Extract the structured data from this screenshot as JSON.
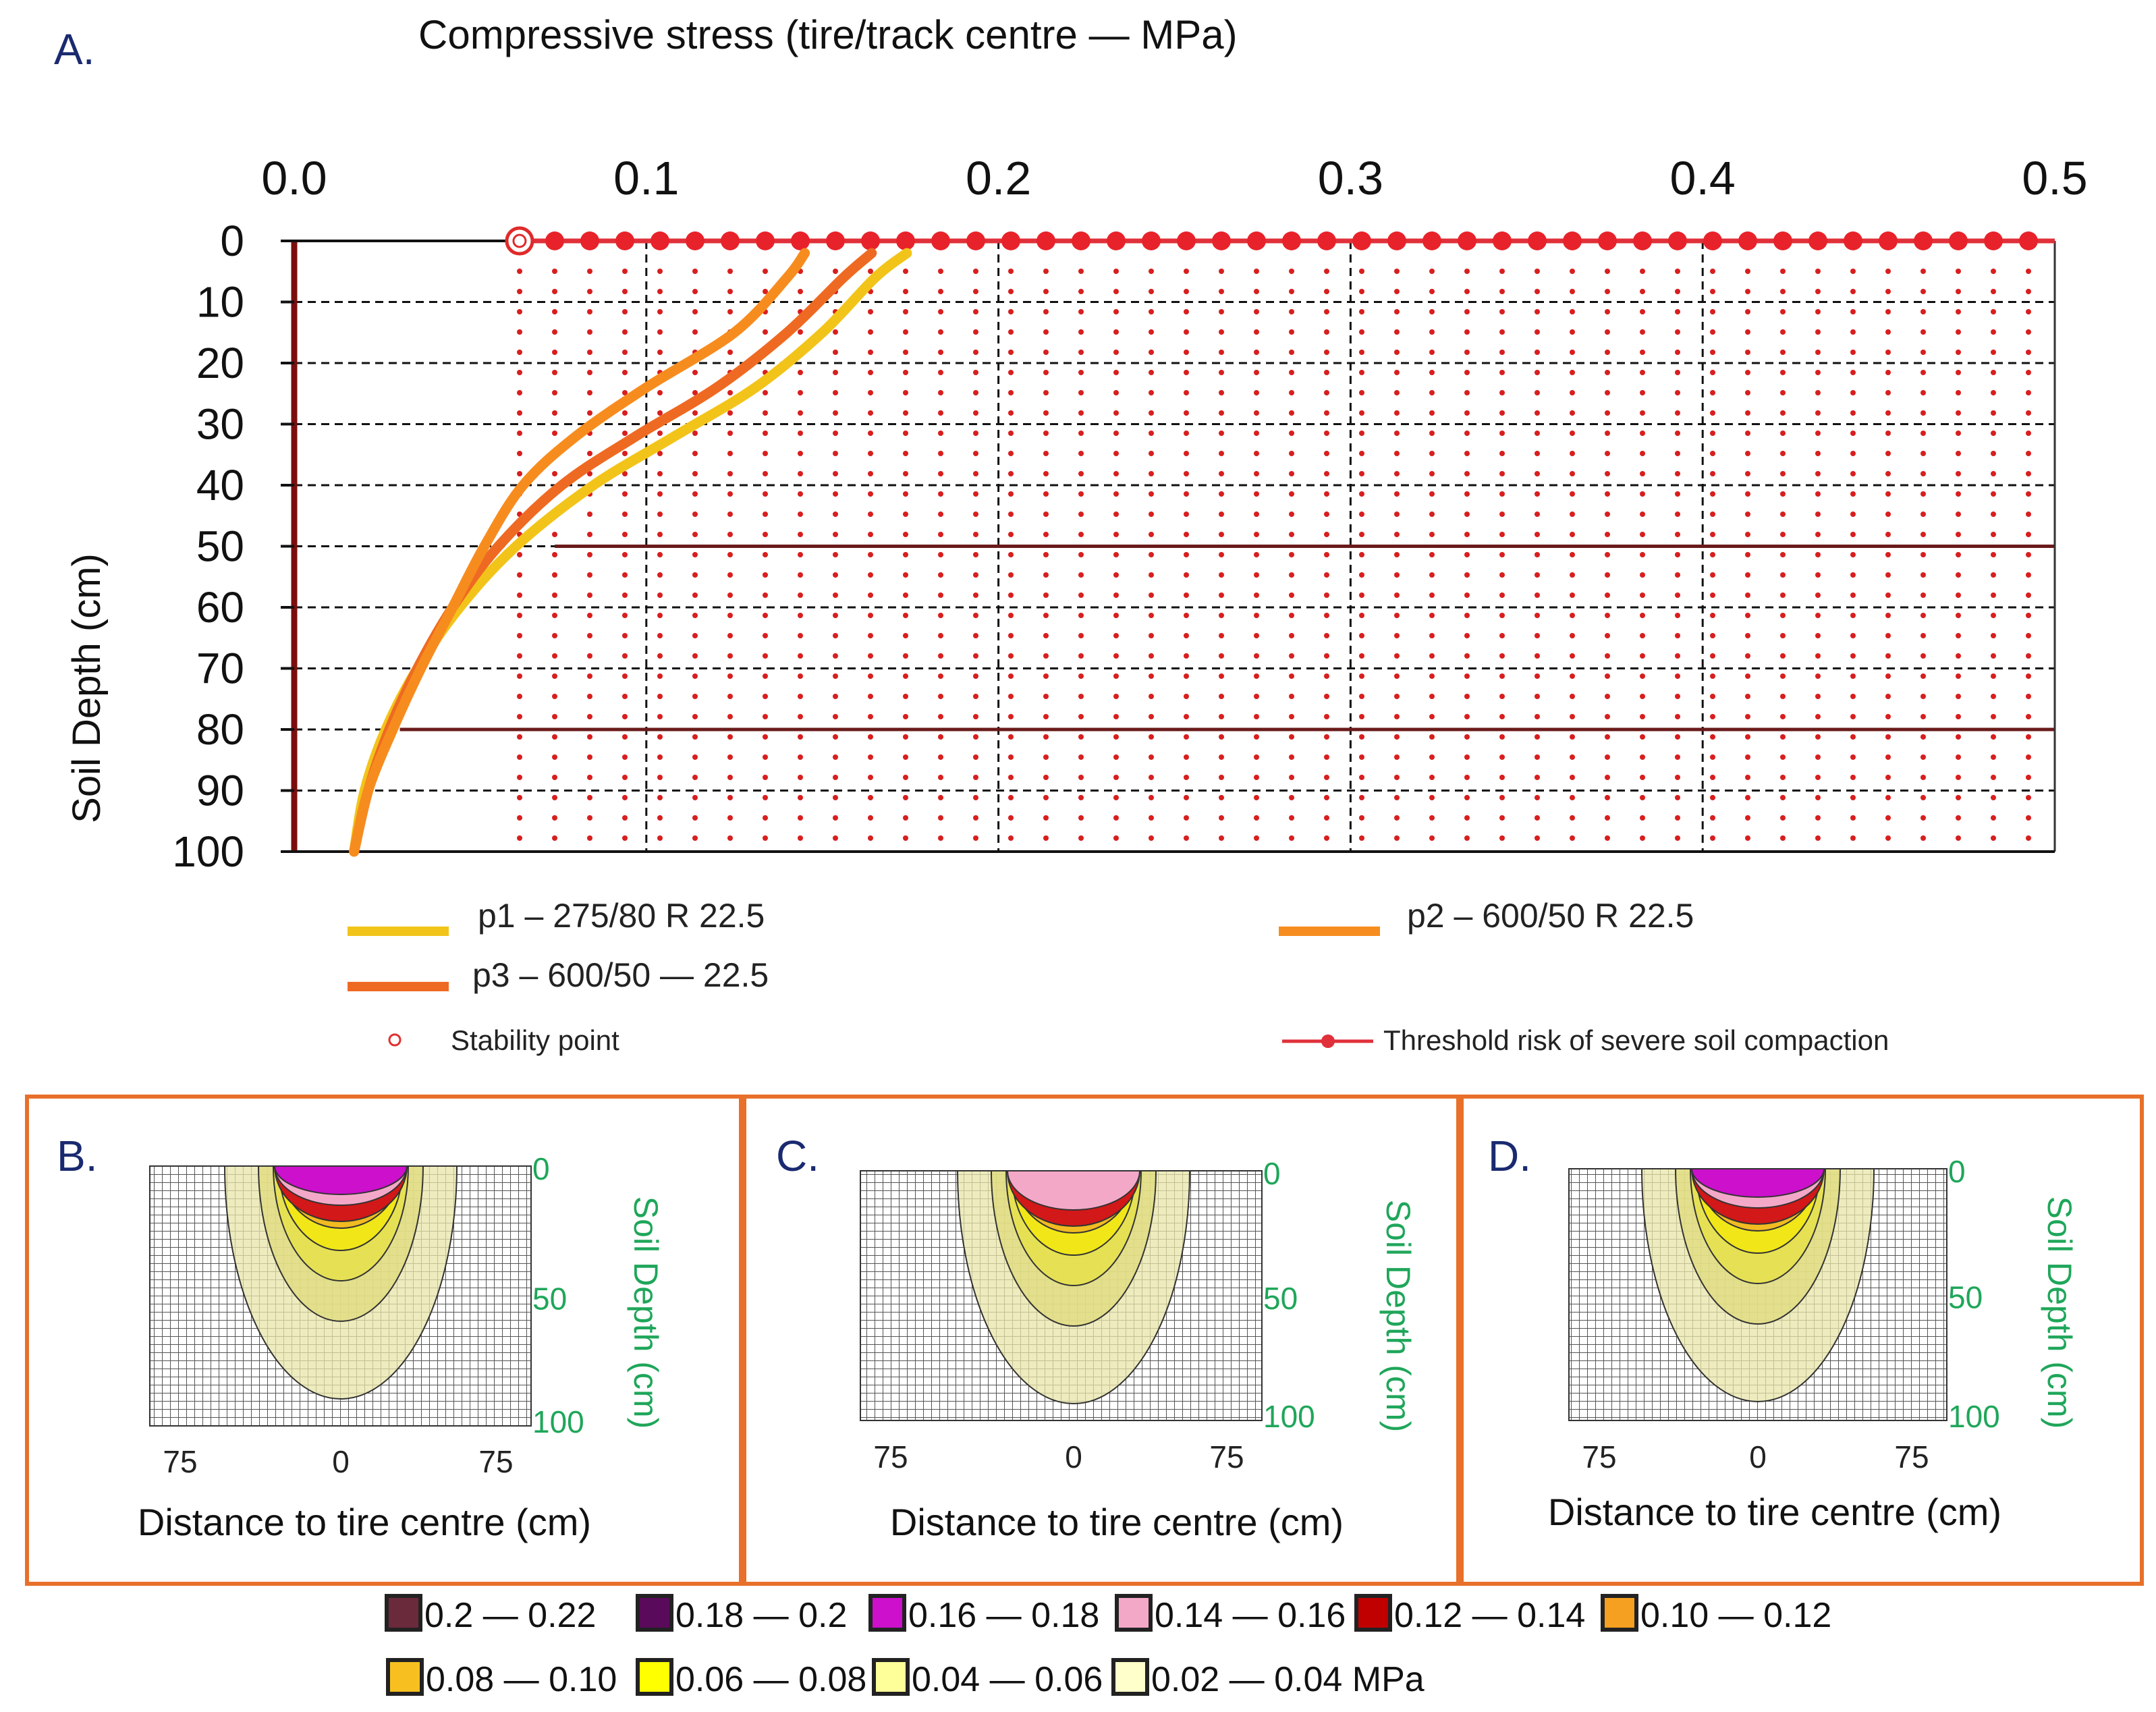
{
  "panel_a": {
    "letter": "A.",
    "title": "Compressive stress (tire/track centre — MPa)",
    "ylabel": "Soil Depth (cm)",
    "legend": {
      "p1": "p1 – 275/80 R 22.5",
      "p2": "p2 – 600/50 R 22.5",
      "p3": "p3 – 600/50 — 22.5",
      "stability": "Stability point",
      "threshold": "Threshold risk of severe soil compaction"
    }
  },
  "chart_data": [
    {
      "type": "line",
      "title": "Compressive stress (tire/track centre — MPa)",
      "xlabel": "",
      "ylabel": "Soil Depth (cm)",
      "xlim": [
        0.0,
        0.5
      ],
      "ylim": [
        0,
        100
      ],
      "y_inverted": true,
      "x_ticks": [
        "0.0",
        "0.1",
        "0.2",
        "0.3",
        "0.4",
        "0.5"
      ],
      "x_tick_values": [
        0.0,
        0.1,
        0.2,
        0.3,
        0.4,
        0.5
      ],
      "y_ticks": [
        "0",
        "10",
        "20",
        "30",
        "40",
        "50",
        "60",
        "70",
        "80",
        "90",
        "100"
      ],
      "y_tick_values": [
        0,
        10,
        20,
        30,
        40,
        50,
        60,
        70,
        80,
        90,
        100
      ],
      "grid": true,
      "series": [
        {
          "name": "p1 – 275/80 R 22.5",
          "color": "#f2c41a",
          "x": [
            0.174,
            0.165,
            0.15,
            0.131,
            0.108,
            0.085,
            0.063,
            0.047,
            0.035,
            0.026,
            0.02,
            0.017
          ],
          "y": [
            2,
            6,
            15,
            24,
            32,
            40,
            50,
            60,
            70,
            80,
            90,
            100
          ]
        },
        {
          "name": "p2 – 600/50 R 22.5",
          "color": "#f78c1e",
          "x": [
            0.145,
            0.14,
            0.125,
            0.1,
            0.08,
            0.065,
            0.054,
            0.045,
            0.036,
            0.028,
            0.021,
            0.017
          ],
          "y": [
            2,
            6,
            15,
            24,
            32,
            40,
            50,
            60,
            70,
            80,
            90,
            100
          ]
        },
        {
          "name": "p3 – 600/50 — 22.5",
          "color": "#ee6a22",
          "x": [
            0.164,
            0.156,
            0.14,
            0.12,
            0.097,
            0.076,
            0.058,
            0.045,
            0.035,
            0.027,
            0.021,
            0.017
          ],
          "y": [
            2,
            6,
            15,
            24,
            32,
            40,
            50,
            60,
            70,
            80,
            90,
            100
          ]
        }
      ],
      "stability_point": {
        "x": 0.064,
        "y": 0
      },
      "threshold_line": {
        "y": 0,
        "x_start": 0.064,
        "x_end": 0.5
      },
      "reference_lines": [
        {
          "y": 50,
          "x_start": 0.074
        },
        {
          "y": 80,
          "x_start": 0.03
        }
      ]
    },
    {
      "type": "heatmap",
      "panels": [
        {
          "letter": "B.",
          "x_ticks": [
            "75",
            "0",
            "75"
          ],
          "y_ticks": [
            "0",
            "50",
            "100"
          ],
          "xlabel": "Distance to tire centre (cm)",
          "ylabel": "Soil Depth (cm)"
        },
        {
          "letter": "C.",
          "x_ticks": [
            "75",
            "0",
            "75"
          ],
          "y_ticks": [
            "0",
            "50",
            "100"
          ],
          "xlabel": "Distance to tire centre (cm)",
          "ylabel": "Soil Depth (cm)"
        },
        {
          "letter": "D.",
          "x_ticks": [
            "75",
            "0",
            "75"
          ],
          "y_ticks": [
            "0",
            "50",
            "100"
          ],
          "xlabel": "Distance to tire centre (cm)",
          "ylabel": "Soil Depth (cm)"
        }
      ],
      "color_legend": [
        {
          "label": "0.2 — 0.22",
          "color": "#6b2a3c"
        },
        {
          "label": "0.18 — 0.2",
          "color": "#5a0a5a"
        },
        {
          "label": "0.16 — 0.18",
          "color": "#cc10cc"
        },
        {
          "label": "0.14 — 0.16",
          "color": "#f4a8c8"
        },
        {
          "label": "0.12 — 0.14",
          "color": "#c00000"
        },
        {
          "label": "0.10 — 0.12",
          "color": "#f5a020"
        },
        {
          "label": "0.08 — 0.10",
          "color": "#f7c020"
        },
        {
          "label": "0.06 — 0.08",
          "color": "#ffff00"
        },
        {
          "label": "0.04 — 0.06",
          "color": "#ffff99"
        },
        {
          "label": "0.02 — 0.04 MPa",
          "color": "#ffffcc"
        }
      ]
    }
  ]
}
